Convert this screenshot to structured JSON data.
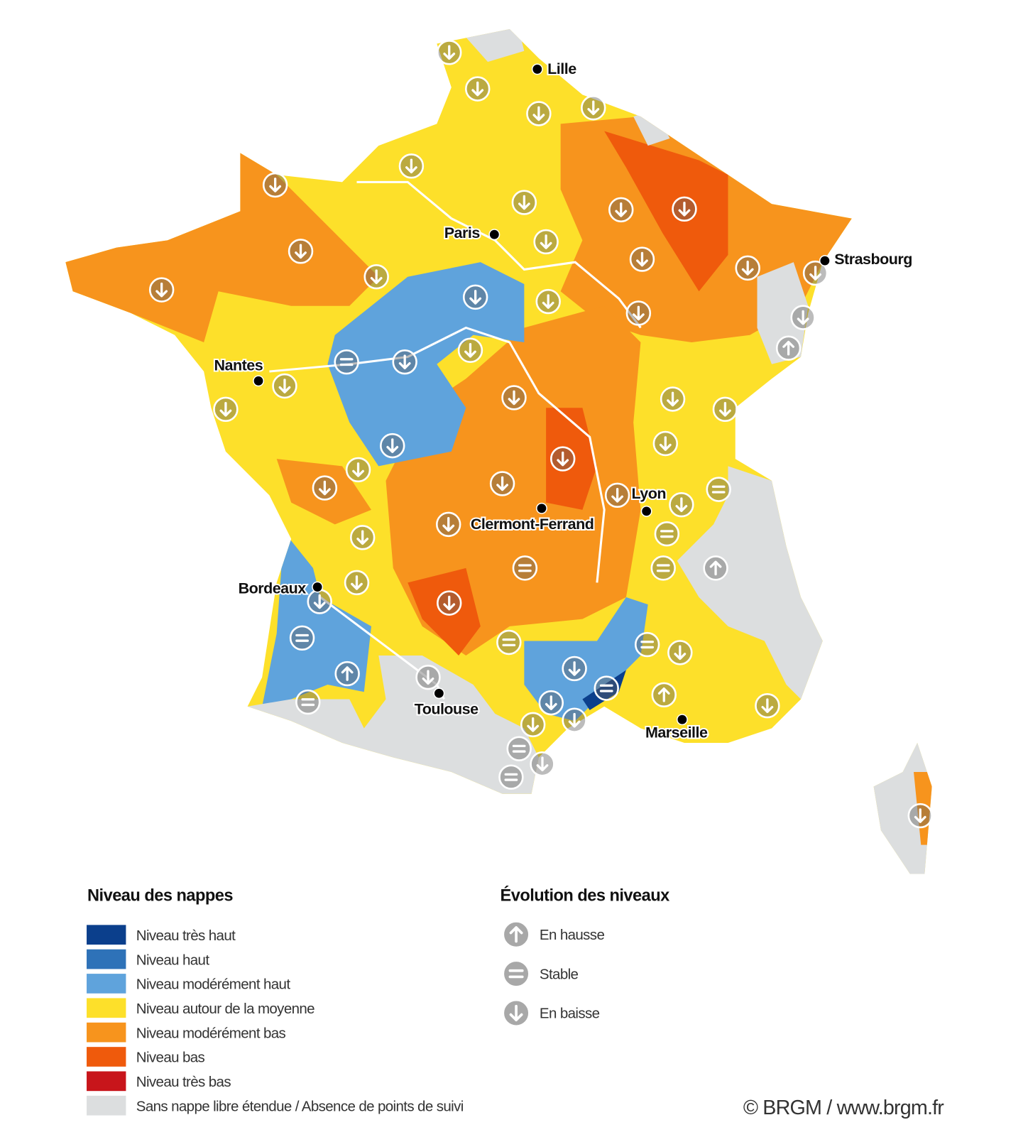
{
  "map": {
    "cities": [
      "Lille",
      "Paris",
      "Strasbourg",
      "Nantes",
      "Lyon",
      "Clermont-Ferrand",
      "Bordeaux",
      "Toulouse",
      "Marseille"
    ]
  },
  "legend_levels": {
    "title": "Niveau des nappes",
    "items": [
      {
        "label": "Niveau très haut",
        "color": "#0b3f8c"
      },
      {
        "label": "Niveau haut",
        "color": "#2e72b8"
      },
      {
        "label": "Niveau modérément haut",
        "color": "#5fa3dc"
      },
      {
        "label": "Niveau autour de la moyenne",
        "color": "#fde02a"
      },
      {
        "label": "Niveau modérément bas",
        "color": "#f7941d"
      },
      {
        "label": "Niveau bas",
        "color": "#ef5a0c"
      },
      {
        "label": "Niveau très bas",
        "color": "#c8151b"
      },
      {
        "label": "Sans nappe libre étendue / Absence de points de suivi",
        "color": "#dcdedf"
      }
    ]
  },
  "legend_trend": {
    "title": "Évolution des niveaux",
    "items": [
      "En hausse",
      "Stable",
      "En baisse"
    ]
  },
  "credit": "© BRGM / www.brgm.fr"
}
